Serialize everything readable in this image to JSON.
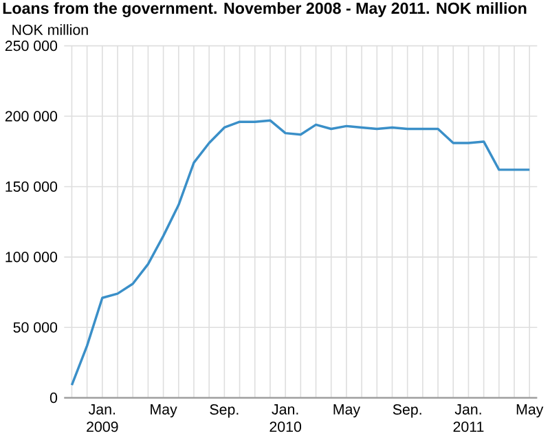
{
  "chart_data": {
    "type": "line",
    "title": "Loans from the government. November 2008 - May 2011. NOK million",
    "ylabel": "NOK million",
    "categories": [
      null,
      null,
      "Jan. 2009",
      null,
      null,
      null,
      "May",
      null,
      null,
      null,
      "Sep.",
      null,
      null,
      null,
      "Jan. 2010",
      null,
      null,
      null,
      "May",
      null,
      null,
      null,
      "Sep.",
      null,
      null,
      null,
      "Jan. 2011",
      null,
      null,
      null,
      "May"
    ],
    "series": [
      {
        "color": "#3a8fc8",
        "values": [
          9000,
          37000,
          71000,
          74000,
          81000,
          95000,
          115000,
          137000,
          167000,
          181000,
          192000,
          196000,
          196000,
          197000,
          188000,
          187000,
          194000,
          191000,
          193000,
          192000,
          191000,
          192000,
          191000,
          191000,
          191000,
          181000,
          181000,
          182000,
          162000,
          162000,
          162000
        ]
      }
    ],
    "ylim": [
      0,
      250000
    ],
    "yticks": [
      0,
      {
        "value": 50000,
        "label": "50 000"
      },
      {
        "value": 100000,
        "label": "100 000"
      },
      {
        "value": 150000,
        "label": "150 000"
      },
      {
        "value": 200000,
        "label": "200 000"
      },
      {
        "value": 250000,
        "label": "250 000"
      }
    ],
    "grid": true,
    "marker": "none",
    "line_style": "solid"
  }
}
